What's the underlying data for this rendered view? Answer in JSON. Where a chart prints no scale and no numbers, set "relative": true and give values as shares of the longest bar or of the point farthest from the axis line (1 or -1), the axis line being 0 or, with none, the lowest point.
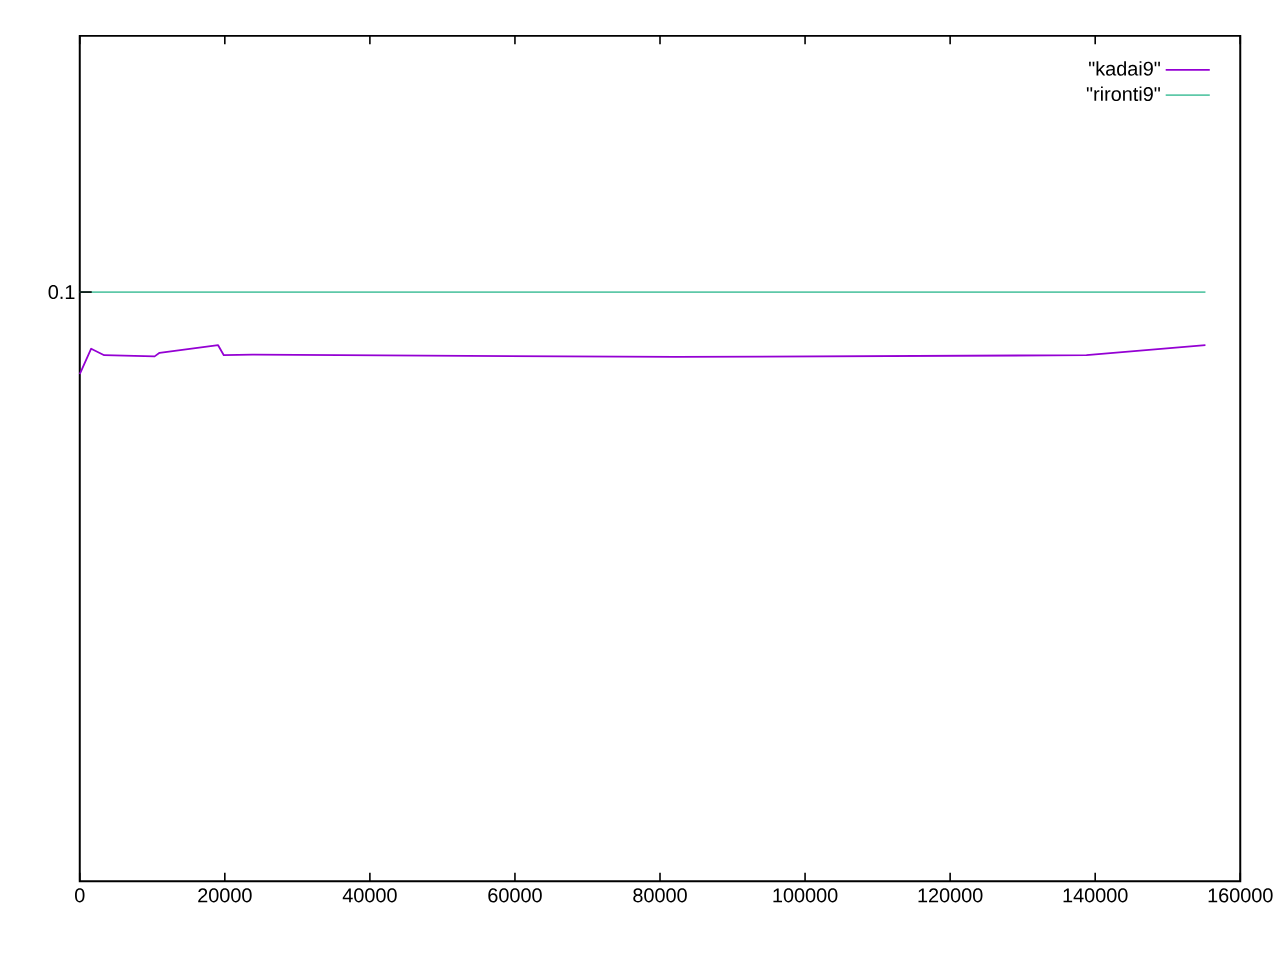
{
  "chart_data": {
    "type": "line",
    "relative": true,
    "xlim": [
      0,
      160000
    ],
    "xticks": [
      0,
      20000,
      40000,
      60000,
      80000,
      100000,
      120000,
      140000,
      160000
    ],
    "legend": "top right",
    "marker": "none",
    "line_style": "solid",
    "annotations": [
      "0.1"
    ],
    "series": [
      {
        "name": "\"kadai9\"",
        "color": "#9400d3",
        "x": [
          0,
          1571,
          3366,
          10322,
          11000,
          19074,
          19860,
          23800,
          82130,
          138800,
          155200
        ],
        "values": [
          0.861,
          0.904,
          0.893,
          0.891,
          0.897,
          0.91,
          0.893,
          0.894,
          0.89,
          0.893,
          0.91
        ]
      },
      {
        "name": "\"rironti9\"",
        "color": "#5ec8a8",
        "x": [
          0,
          155200
        ],
        "values": [
          1,
          1
        ]
      }
    ]
  }
}
